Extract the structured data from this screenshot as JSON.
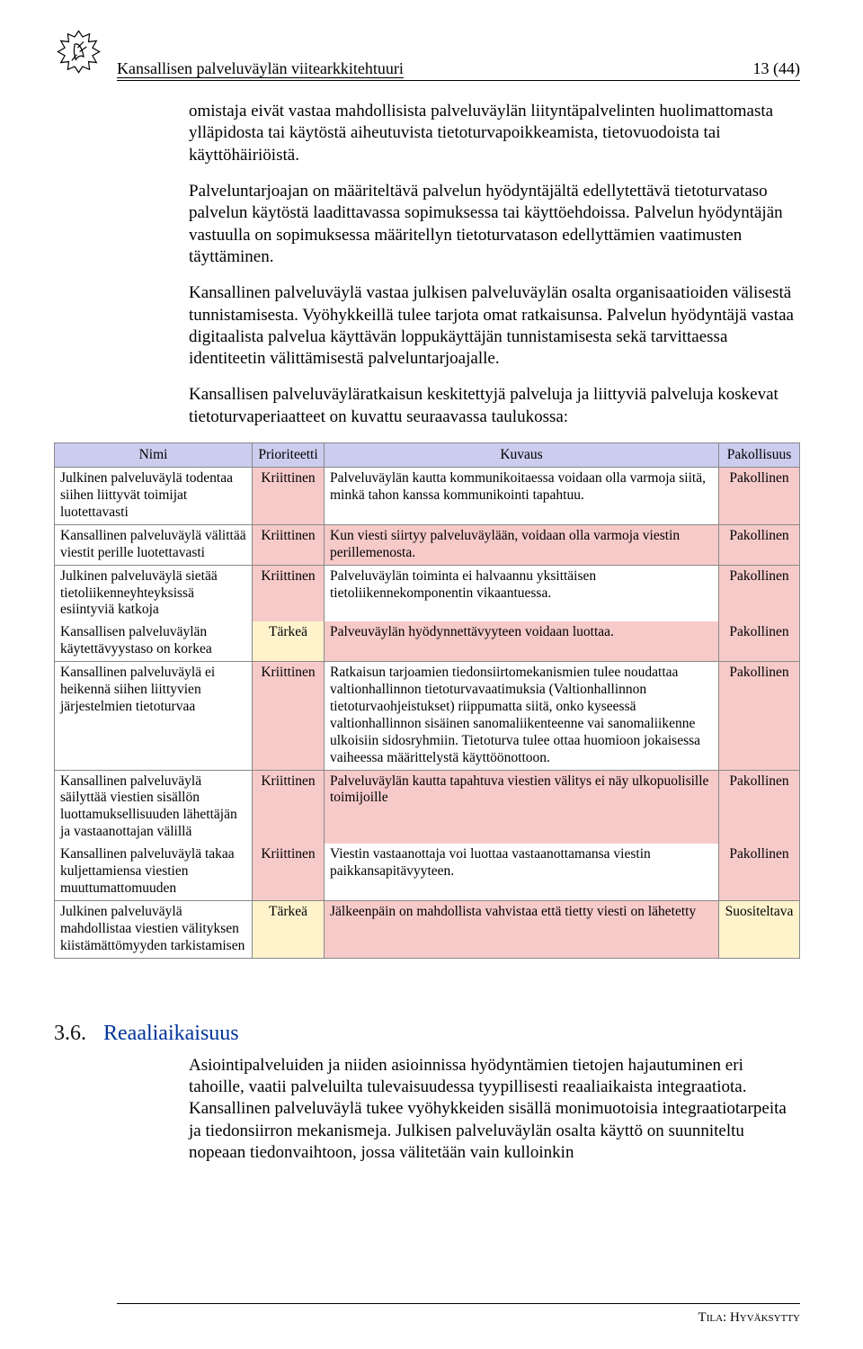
{
  "header": {
    "title": "Kansallisen palveluväylän viitearkkitehtuuri",
    "page_number": "13 (44)"
  },
  "body": {
    "p1": "omistaja eivät vastaa mahdollisista palveluväylän liityntäpalvelinten huolimattomasta ylläpidosta tai käytöstä aiheutuvista tietoturvapoikkeamista, tietovuodoista tai käyttöhäiriöistä.",
    "p2": "Palveluntarjoajan on määriteltävä palvelun hyödyntäjältä edellytettävä tietoturvataso palvelun käytöstä laadittavassa sopimuksessa tai käyttöehdoissa. Palvelun hyödyntäjän vastuulla on sopimuksessa määritellyn tietoturvatason edellyttämien vaatimusten täyttäminen.",
    "p3": "Kansallinen palveluväylä vastaa julkisen palveluväylän osalta organisaatioiden välisestä tunnistamisesta. Vyöhykkeillä tulee tarjota omat ratkaisunsa. Palvelun hyödyntäjä vastaa digitaalista palvelua käyttävän loppukäyttäjän tunnistamisesta sekä tarvittaessa identiteetin välittämisestä palveluntarjoajalle.",
    "p4": "Kansallisen palveluväyläratkaisun keskitettyjä palveluja ja liittyviä palveluja koskevat tietoturvaperiaatteet on kuvattu seuraavassa taulukossa:"
  },
  "table": {
    "headers": {
      "nimi": "Nimi",
      "prio": "Prioriteetti",
      "kuvaus": "Kuvaus",
      "pak": "Pakollisuus"
    },
    "colors": {
      "header_bg": "#ccccee",
      "row1_prio_bg": "#f7caca",
      "row1_kuvaus_bg": "#ffffff",
      "row1_pak_bg": "#f7caca",
      "row2_prio_bg": "#f7caca",
      "row2_kuvaus_bg": "#f7caca",
      "row2_pak_bg": "#f7caca",
      "row3_prio_bg": "#f7caca",
      "row3_kuvaus_bg": "#ffffff",
      "row3_pak_bg": "#f7caca",
      "row4_prio_bg": "#fff3cc",
      "row4_kuvaus_bg": "#f7caca",
      "row4_pak_bg": "#f7caca",
      "row5_prio_bg": "#f7caca",
      "row5_kuvaus_bg": "#ffffff",
      "row5_pak_bg": "#f7caca",
      "row6_prio_bg": "#f7caca",
      "row6_kuvaus_bg": "#f7caca",
      "row6_pak_bg": "#f7caca",
      "row7_prio_bg": "#f7caca",
      "row7_kuvaus_bg": "#ffffff",
      "row7_pak_bg": "#f7caca",
      "row8_prio_bg": "#fff3cc",
      "row8_kuvaus_bg": "#f7caca",
      "row8_pak_bg": "#fff3cc"
    },
    "rows": [
      {
        "nimi": "Julkinen palveluväylä todentaa siihen liittyvät toimijat luotettavasti",
        "prio": "Kriittinen",
        "kuvaus": "Palveluväylän kautta kommunikoitaessa voidaan olla varmoja siitä, minkä tahon kanssa kommunikointi tapahtuu.",
        "pak": "Pakollinen",
        "newTop": true
      },
      {
        "nimi": "Kansallinen palveluväylä välittää viestit perille luotettavasti",
        "prio": "Kriittinen",
        "kuvaus": "Kun viesti siirtyy palveluväylään, voidaan olla varmoja viestin perillemenosta.",
        "pak": "Pakollinen",
        "newTop": true
      },
      {
        "nimi": "Julkinen palveluväylä sietää tietoliikenneyhteyksissä esiintyviä katkoja",
        "prio": "Kriittinen",
        "kuvaus": "Palveluväylän toiminta ei halvaannu yksittäisen tietoliikennekomponentin vikaantuessa.",
        "pak": "Pakollinen",
        "newTop": true
      },
      {
        "nimi": "Kansallisen palveluväylän käytettävyystaso on korkea",
        "prio": "Tärkeä",
        "kuvaus": "Palveuväylän hyödynnettävyyteen voidaan luottaa.",
        "pak": "Pakollinen",
        "newTop": false
      },
      {
        "nimi": "Kansallinen palveluväylä ei heikennä siihen liittyvien järjestelmien tietoturvaa",
        "prio": "Kriittinen",
        "kuvaus": "Ratkaisun tarjoamien tiedonsiirtomekanismien tulee noudattaa valtionhallinnon tietoturvavaatimuksia (Valtionhallinnon tietoturvaohjeistukset) riippumatta siitä, onko kyseessä valtionhallinnon sisäinen sanomaliikenteenne vai sanomaliikenne ulkoisiin sidosryhmiin. Tietoturva tulee ottaa huomioon jokaisessa vaiheessa määrittelystä käyttöönottoon.",
        "pak": "Pakollinen",
        "newTop": true
      },
      {
        "nimi": "Kansallinen palveluväylä säilyttää viestien sisällön luottamuksellisuuden lähettäjän ja vastaanottajan välillä",
        "prio": "Kriittinen",
        "kuvaus": "Palveluväylän kautta tapahtuva viestien välitys ei näy ulkopuolisille toimijoille",
        "pak": "Pakollinen",
        "newTop": true
      },
      {
        "nimi": "Kansallinen palveluväylä takaa kuljettamiensa viestien muuttumattomuuden",
        "prio": "Kriittinen",
        "kuvaus": "Viestin vastaanottaja voi luottaa vastaanottamansa viestin paikkansapitävyyteen.",
        "pak": "Pakollinen",
        "newTop": false
      },
      {
        "nimi": "Julkinen palveluväylä mahdollistaa viestien välityksen kiistämättömyyden tarkistamisen",
        "prio": "Tärkeä",
        "kuvaus": "Jälkeenpäin on mahdollista vahvistaa että tietty viesti on lähetetty",
        "pak": "Suositeltava",
        "newTop": true
      }
    ]
  },
  "section": {
    "num": "3.6.",
    "title": "Reaaliaikaisuus",
    "body": "Asiointipalveluiden ja niiden asioinnissa hyödyntämien tietojen hajautuminen eri tahoille, vaatii palveluilta tulevaisuudessa tyypillisesti reaaliaikaista integraatiota. Kansallinen palveluväylä tukee vyöhykkeiden sisällä monimuotoisia integraatiotarpeita ja tiedonsiirron mekanismeja. Julkisen palveluväylän osalta käyttö on suunniteltu nopeaan tiedonvaihtoon, jossa välitetään vain kulloinkin"
  },
  "footer": {
    "label": "Tila: ",
    "value": "Hyväksytty"
  }
}
